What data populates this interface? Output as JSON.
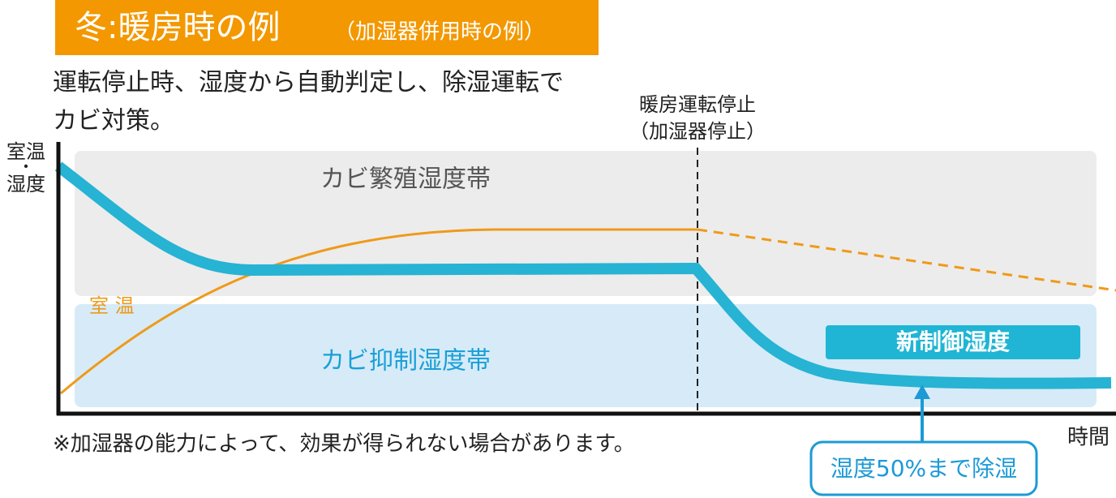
{
  "header": {
    "title": "冬:暖房時の例",
    "subtitle": "（加湿器併用時の例）"
  },
  "description": [
    "運転停止時、湿度から自動判定し、除湿運転で",
    "カビ対策。"
  ],
  "stop_annotation": [
    "暖房運転停止",
    "（加湿器停止）"
  ],
  "y_axis_label": [
    "室温",
    "・",
    "湿度"
  ],
  "x_axis_label": "時間",
  "zones": {
    "upper": "カビ繁殖湿度帯",
    "lower": "カビ抑制湿度帯"
  },
  "temperature_label": "室 温",
  "new_control_badge": "新制御湿度",
  "callout": "湿度50%まで除湿",
  "note": "※加湿器の能力によって、効果が得られない場合があります。"
}
